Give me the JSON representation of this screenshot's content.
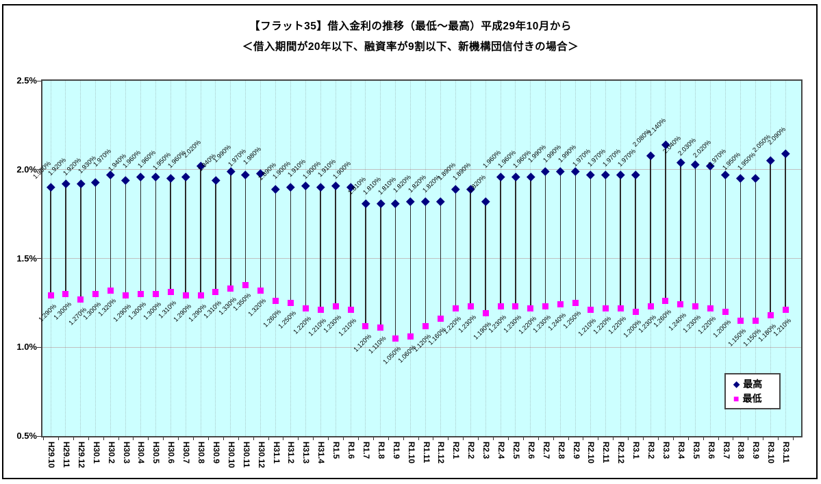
{
  "title": {
    "line1": "【フラット35】借入金利の推移（最低～最高）平成29年10月から",
    "line2": "＜借入期間が20年以下、融資率が9割以下、新機構団信付きの場合＞"
  },
  "y_axis": {
    "tick_labels": [
      "2.5%",
      "2.0%",
      "1.5%",
      "1.0%",
      "0.5%"
    ],
    "tick_values": [
      2.5,
      2.0,
      1.5,
      1.0,
      0.5
    ]
  },
  "colors": {
    "plot_background": "#CCFFFF",
    "max_marker": "#000080",
    "min_marker": "#FF00FF",
    "gridline": "#C0C0C0",
    "range_line": "#2b2b2b"
  },
  "chart_data": {
    "type": "scatter",
    "subtype": "high-low-range-with-markers",
    "title": "【フラット35】借入金利の推移（最低～最高）平成29年10月から ＜借入期間が20年以下、融資率が9割以下、新機構団信付きの場合＞",
    "xlabel": "",
    "ylabel": "",
    "ylim": [
      0.5,
      2.5
    ],
    "ytick_step": 0.5,
    "grid": true,
    "legend_position": "inside-bottom-right",
    "data_label_format": "0.000%",
    "categories": [
      "H29.10",
      "H29.11",
      "H29.12",
      "H30.1",
      "H30.2",
      "H30.3",
      "H30.4",
      "H30.5",
      "H30.6",
      "H30.7",
      "H30.8",
      "H30.9",
      "H30.10",
      "H30.11",
      "H30.12",
      "H31.1",
      "H31.2",
      "H31.3",
      "H31.4",
      "R1.5",
      "R1.6",
      "R1.7",
      "R1.8",
      "R1.9",
      "R1.10",
      "R1.11",
      "R1.12",
      "R2.1",
      "R2.2",
      "R2.3",
      "R2.4",
      "R2.5",
      "R2.6",
      "R2.7",
      "R2.8",
      "R2.9",
      "R2.10",
      "R2.11",
      "R2.12",
      "R3.1",
      "R3.2",
      "R3.3",
      "R3.4",
      "R3.5",
      "R3.6",
      "R3.7",
      "R3.8",
      "R3.9",
      "R3.10",
      "R3.11"
    ],
    "series": [
      {
        "name": "最高",
        "marker": "diamond",
        "color": "#000080",
        "values": [
          1.9,
          1.92,
          1.92,
          1.93,
          1.97,
          1.94,
          1.96,
          1.96,
          1.95,
          1.96,
          2.02,
          1.94,
          1.99,
          1.97,
          1.98,
          1.89,
          1.9,
          1.91,
          1.9,
          1.91,
          1.9,
          1.81,
          1.81,
          1.81,
          1.82,
          1.82,
          1.82,
          1.89,
          1.89,
          1.82,
          1.96,
          1.96,
          1.96,
          1.99,
          1.99,
          1.99,
          1.97,
          1.97,
          1.97,
          1.97,
          2.08,
          2.14,
          2.04,
          2.03,
          2.02,
          1.97,
          1.95,
          1.95,
          2.05,
          2.09
        ]
      },
      {
        "name": "最低",
        "marker": "square",
        "color": "#FF00FF",
        "values": [
          1.29,
          1.3,
          1.27,
          1.3,
          1.32,
          1.29,
          1.3,
          1.3,
          1.31,
          1.29,
          1.29,
          1.31,
          1.33,
          1.35,
          1.32,
          1.26,
          1.25,
          1.22,
          1.21,
          1.23,
          1.21,
          1.12,
          1.11,
          1.05,
          1.06,
          1.12,
          1.16,
          1.22,
          1.23,
          1.19,
          1.23,
          1.23,
          1.22,
          1.23,
          1.24,
          1.25,
          1.21,
          1.22,
          1.22,
          1.2,
          1.23,
          1.26,
          1.24,
          1.23,
          1.22,
          1.2,
          1.15,
          1.15,
          1.18,
          1.21
        ]
      }
    ]
  }
}
